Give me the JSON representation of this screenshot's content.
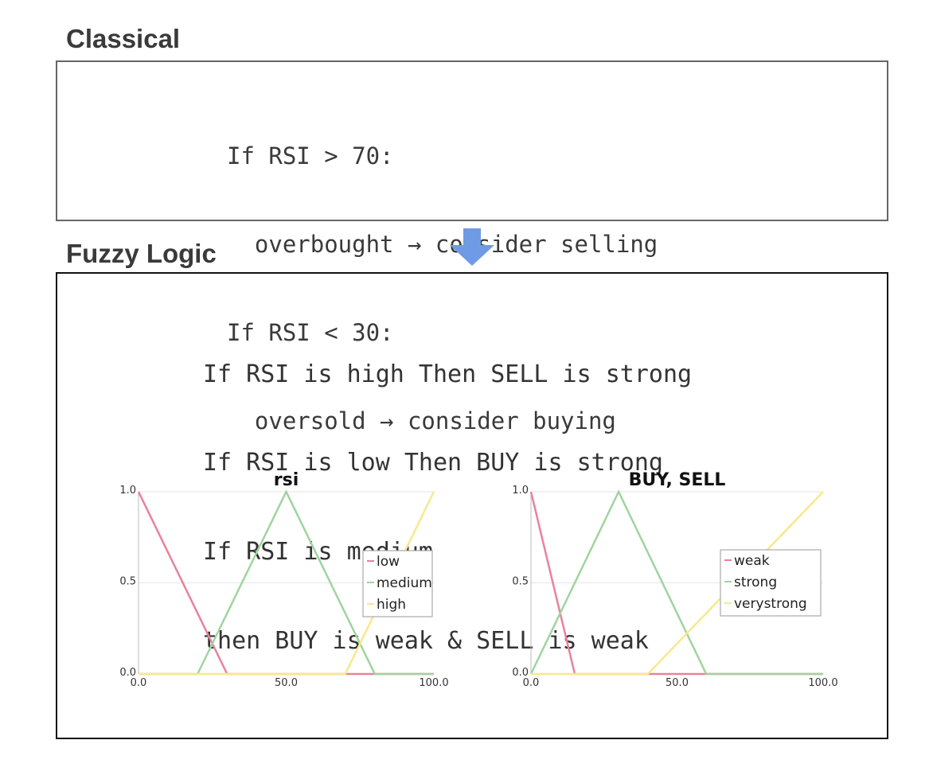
{
  "sections": {
    "classical": {
      "heading": "Classical",
      "code_lines": [
        "If RSI > 70:",
        "  overbought → consider selling",
        "If RSI < 30:",
        "  oversold → consider buying"
      ]
    },
    "fuzzy": {
      "heading": "Fuzzy Logic",
      "code_lines": [
        "If RSI is high Then SELL is strong",
        "If RSI is low Then BUY is strong",
        "If RSI is medium",
        "then BUY is weak & SELL is weak"
      ]
    }
  },
  "arrow": {
    "color": "#6f9ae6",
    "icon": "arrow-down-icon"
  },
  "chart_data": [
    {
      "type": "line",
      "title": "rsi",
      "xlabel": "",
      "ylabel": "",
      "xlim": [
        0,
        100
      ],
      "ylim": [
        0,
        1
      ],
      "x_ticks": [
        "0.0",
        "50.0",
        "100.0"
      ],
      "y_ticks": [
        "0.0",
        "0.5",
        "1.0"
      ],
      "grid": true,
      "legend_position": "center-right",
      "series": [
        {
          "name": "low",
          "color": "#e8829c",
          "x": [
            0,
            30,
            100
          ],
          "y": [
            1,
            0,
            0
          ]
        },
        {
          "name": "medium",
          "color": "#9fd49f",
          "x": [
            0,
            20,
            50,
            80,
            100
          ],
          "y": [
            0,
            0,
            1,
            0,
            0
          ]
        },
        {
          "name": "high",
          "color": "#f7e98a",
          "x": [
            0,
            70,
            100
          ],
          "y": [
            0,
            0,
            1
          ]
        }
      ]
    },
    {
      "type": "line",
      "title": "BUY, SELL",
      "xlabel": "",
      "ylabel": "",
      "xlim": [
        0,
        100
      ],
      "ylim": [
        0,
        1
      ],
      "x_ticks": [
        "0.0",
        "50.0",
        "100.0"
      ],
      "y_ticks": [
        "0.0",
        "0.5",
        "1.0"
      ],
      "grid": true,
      "legend_position": "center-right",
      "series": [
        {
          "name": "weak",
          "color": "#e8829c",
          "x": [
            0,
            15,
            100
          ],
          "y": [
            1,
            0,
            0
          ]
        },
        {
          "name": "strong",
          "color": "#9fd49f",
          "x": [
            0,
            30,
            60,
            100
          ],
          "y": [
            0,
            1,
            0,
            0
          ]
        },
        {
          "name": "verystrong",
          "color": "#f7e98a",
          "x": [
            0,
            40,
            100
          ],
          "y": [
            0,
            0,
            1
          ]
        }
      ]
    }
  ]
}
